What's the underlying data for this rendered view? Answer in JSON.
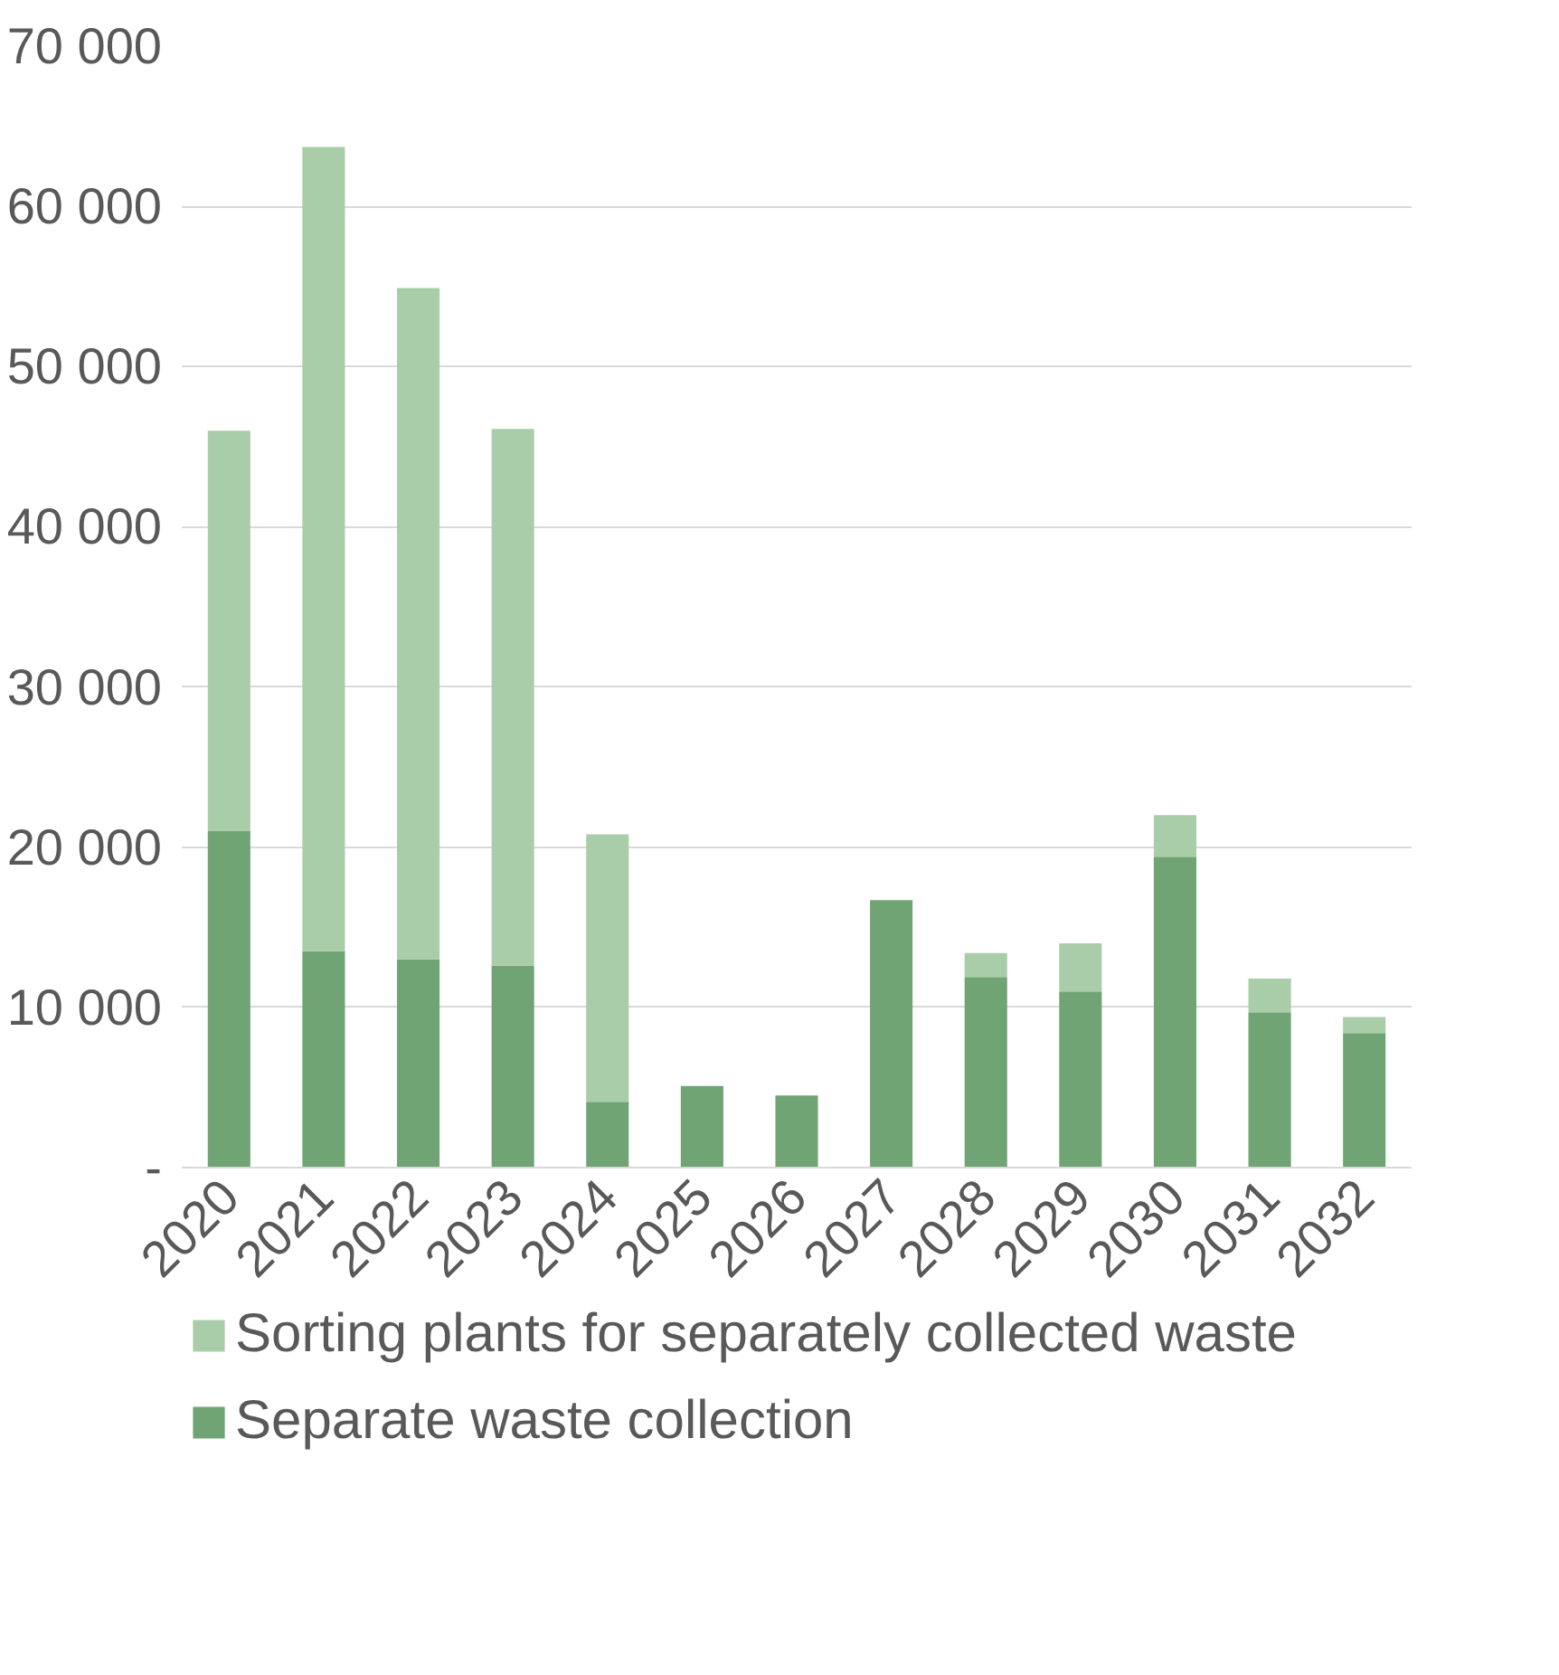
{
  "chart_data": {
    "type": "bar",
    "stacked": true,
    "categories": [
      "2020",
      "2021",
      "2022",
      "2023",
      "2024",
      "2025",
      "2026",
      "2027",
      "2028",
      "2029",
      "2030",
      "2031",
      "2032"
    ],
    "series": [
      {
        "name": "Separate waste collection",
        "color": "#70a474",
        "values": [
          21000,
          13500,
          13000,
          12600,
          4100,
          5100,
          4500,
          16700,
          11900,
          11000,
          19400,
          9700,
          8400
        ]
      },
      {
        "name": "Sorting plants for separately collected waste",
        "color": "#a9cda9",
        "values": [
          25000,
          50200,
          41900,
          33500,
          16700,
          null,
          null,
          null,
          1500,
          3000,
          2600,
          2100,
          1000
        ]
      }
    ],
    "ylim": [
      0,
      70000
    ],
    "yticks": [
      {
        "value": 0,
        "label": "-"
      },
      {
        "value": 10000,
        "label": "10 000"
      },
      {
        "value": 20000,
        "label": "20 000"
      },
      {
        "value": 30000,
        "label": "30 000"
      },
      {
        "value": 40000,
        "label": "40 000"
      },
      {
        "value": 50000,
        "label": "50 000"
      },
      {
        "value": 60000,
        "label": "60 000"
      },
      {
        "value": 70000,
        "label": "70 000"
      }
    ],
    "grid": "y",
    "legend": "bottom"
  }
}
